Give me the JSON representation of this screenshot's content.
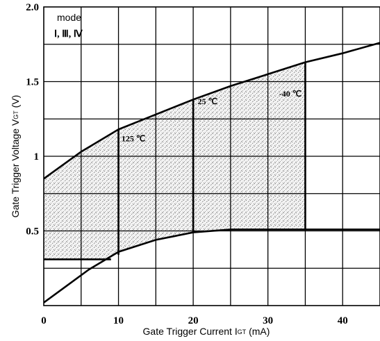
{
  "chart_data": {
    "type": "area",
    "xlabel": "Gate Trigger Current I",
    "xlabel_sub": "GT",
    "xlabel_unit": " (mA)",
    "ylabel": "Gate Trigger Voltage V",
    "ylabel_sub": "GT",
    "ylabel_unit": " (V)",
    "xlim": [
      0,
      45
    ],
    "ylim": [
      0,
      2.0
    ],
    "x_ticks": [
      {
        "value": 0,
        "label": "0"
      },
      {
        "value": 10,
        "label": "10"
      },
      {
        "value": 20,
        "label": "20"
      },
      {
        "value": 30,
        "label": "30"
      },
      {
        "value": 40,
        "label": "40"
      }
    ],
    "y_ticks": [
      {
        "value": 0.5,
        "label": "0.5"
      },
      {
        "value": 1.0,
        "label": "1"
      },
      {
        "value": 1.5,
        "label": "1.5"
      },
      {
        "value": 2.0,
        "label": "2.0"
      }
    ],
    "grid": true,
    "legend": {
      "title": "mode",
      "value": "Ⅰ, Ⅲ, Ⅳ",
      "position": "top-left"
    },
    "series": [
      {
        "role": "upper-boundary",
        "x": [
          0,
          5,
          10,
          15,
          20,
          25,
          30,
          35,
          40,
          45
        ],
        "y": [
          0.85,
          1.03,
          1.18,
          1.28,
          1.38,
          1.47,
          1.55,
          1.63,
          1.69,
          1.76
        ]
      },
      {
        "role": "lower-boundary",
        "x": [
          0,
          3,
          6,
          10,
          15,
          20,
          25,
          30,
          35,
          40,
          45
        ],
        "y": [
          0.02,
          0.13,
          0.24,
          0.36,
          0.44,
          0.49,
          0.51,
          0.51,
          0.51,
          0.51,
          0.51
        ]
      },
      {
        "role": "lower-step",
        "x": [
          0,
          9
        ],
        "y": [
          0.31,
          0.31
        ]
      }
    ],
    "annotations": [
      {
        "label": "125 ℃",
        "x": 10,
        "y_range": [
          0.34,
          1.18
        ],
        "text_x": 10.4,
        "text_y": 1.1
      },
      {
        "label": "25 ℃",
        "x": 20,
        "y_range": [
          0.49,
          1.38
        ],
        "text_x": 20.6,
        "text_y": 1.35
      },
      {
        "label": "-40 ℃",
        "x": 35,
        "y_range": [
          0.51,
          1.63
        ],
        "text_x": 31.5,
        "text_y": 1.4
      }
    ],
    "shaded_region": {
      "x_range": [
        0,
        35
      ],
      "description": "between lower and upper boundaries"
    }
  }
}
